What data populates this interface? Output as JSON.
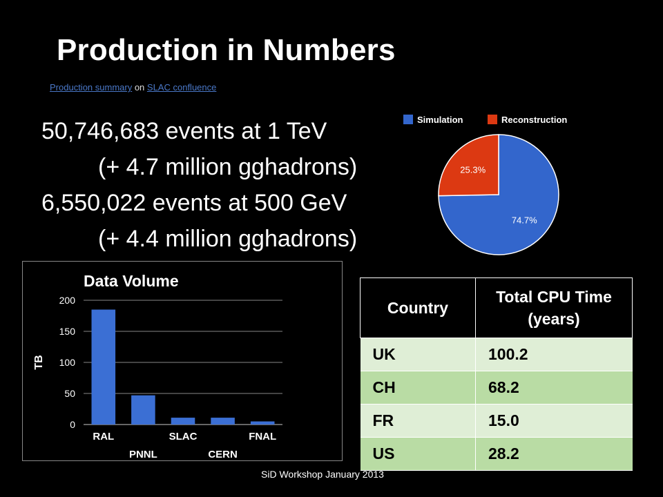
{
  "slide": {
    "title": "Production in Numbers",
    "link1": "Production summary",
    "link_sep": " on ",
    "link2": "SLAC confluence",
    "bullets": [
      "50,746,683 events at 1 TeV",
      "(+ 4.7 million  gghadrons)",
      "6,550,022 events at 500 GeV",
      "(+ 4.4 million gghadrons)"
    ],
    "footer": "SiD Workshop January 2013"
  },
  "colors": {
    "simulation": "#3366cc",
    "reconstruction": "#dc3912",
    "bar": "#3b6fd4"
  },
  "chart_data": [
    {
      "type": "pie",
      "labels": [
        "Simulation",
        "Reconstruction"
      ],
      "values": [
        74.7,
        25.3
      ],
      "value_labels": [
        "74.7%",
        "25.3%"
      ],
      "legend_placement": "top"
    },
    {
      "type": "bar",
      "title": "Data Volume",
      "ylabel": "TB",
      "categories": [
        "RAL",
        "PNNL",
        "SLAC",
        "CERN",
        "FNAL"
      ],
      "values": [
        185,
        47,
        11,
        11,
        5
      ],
      "ylim": [
        0,
        200
      ],
      "yticks": [
        0,
        50,
        100,
        150,
        200
      ],
      "grid": true
    },
    {
      "type": "table",
      "columns": [
        "Country",
        "Total CPU Time (years)"
      ],
      "rows": [
        [
          "UK",
          "100.2"
        ],
        [
          "CH",
          "68.2"
        ],
        [
          "FR",
          "15.0"
        ],
        [
          "US",
          "28.2"
        ]
      ]
    }
  ]
}
